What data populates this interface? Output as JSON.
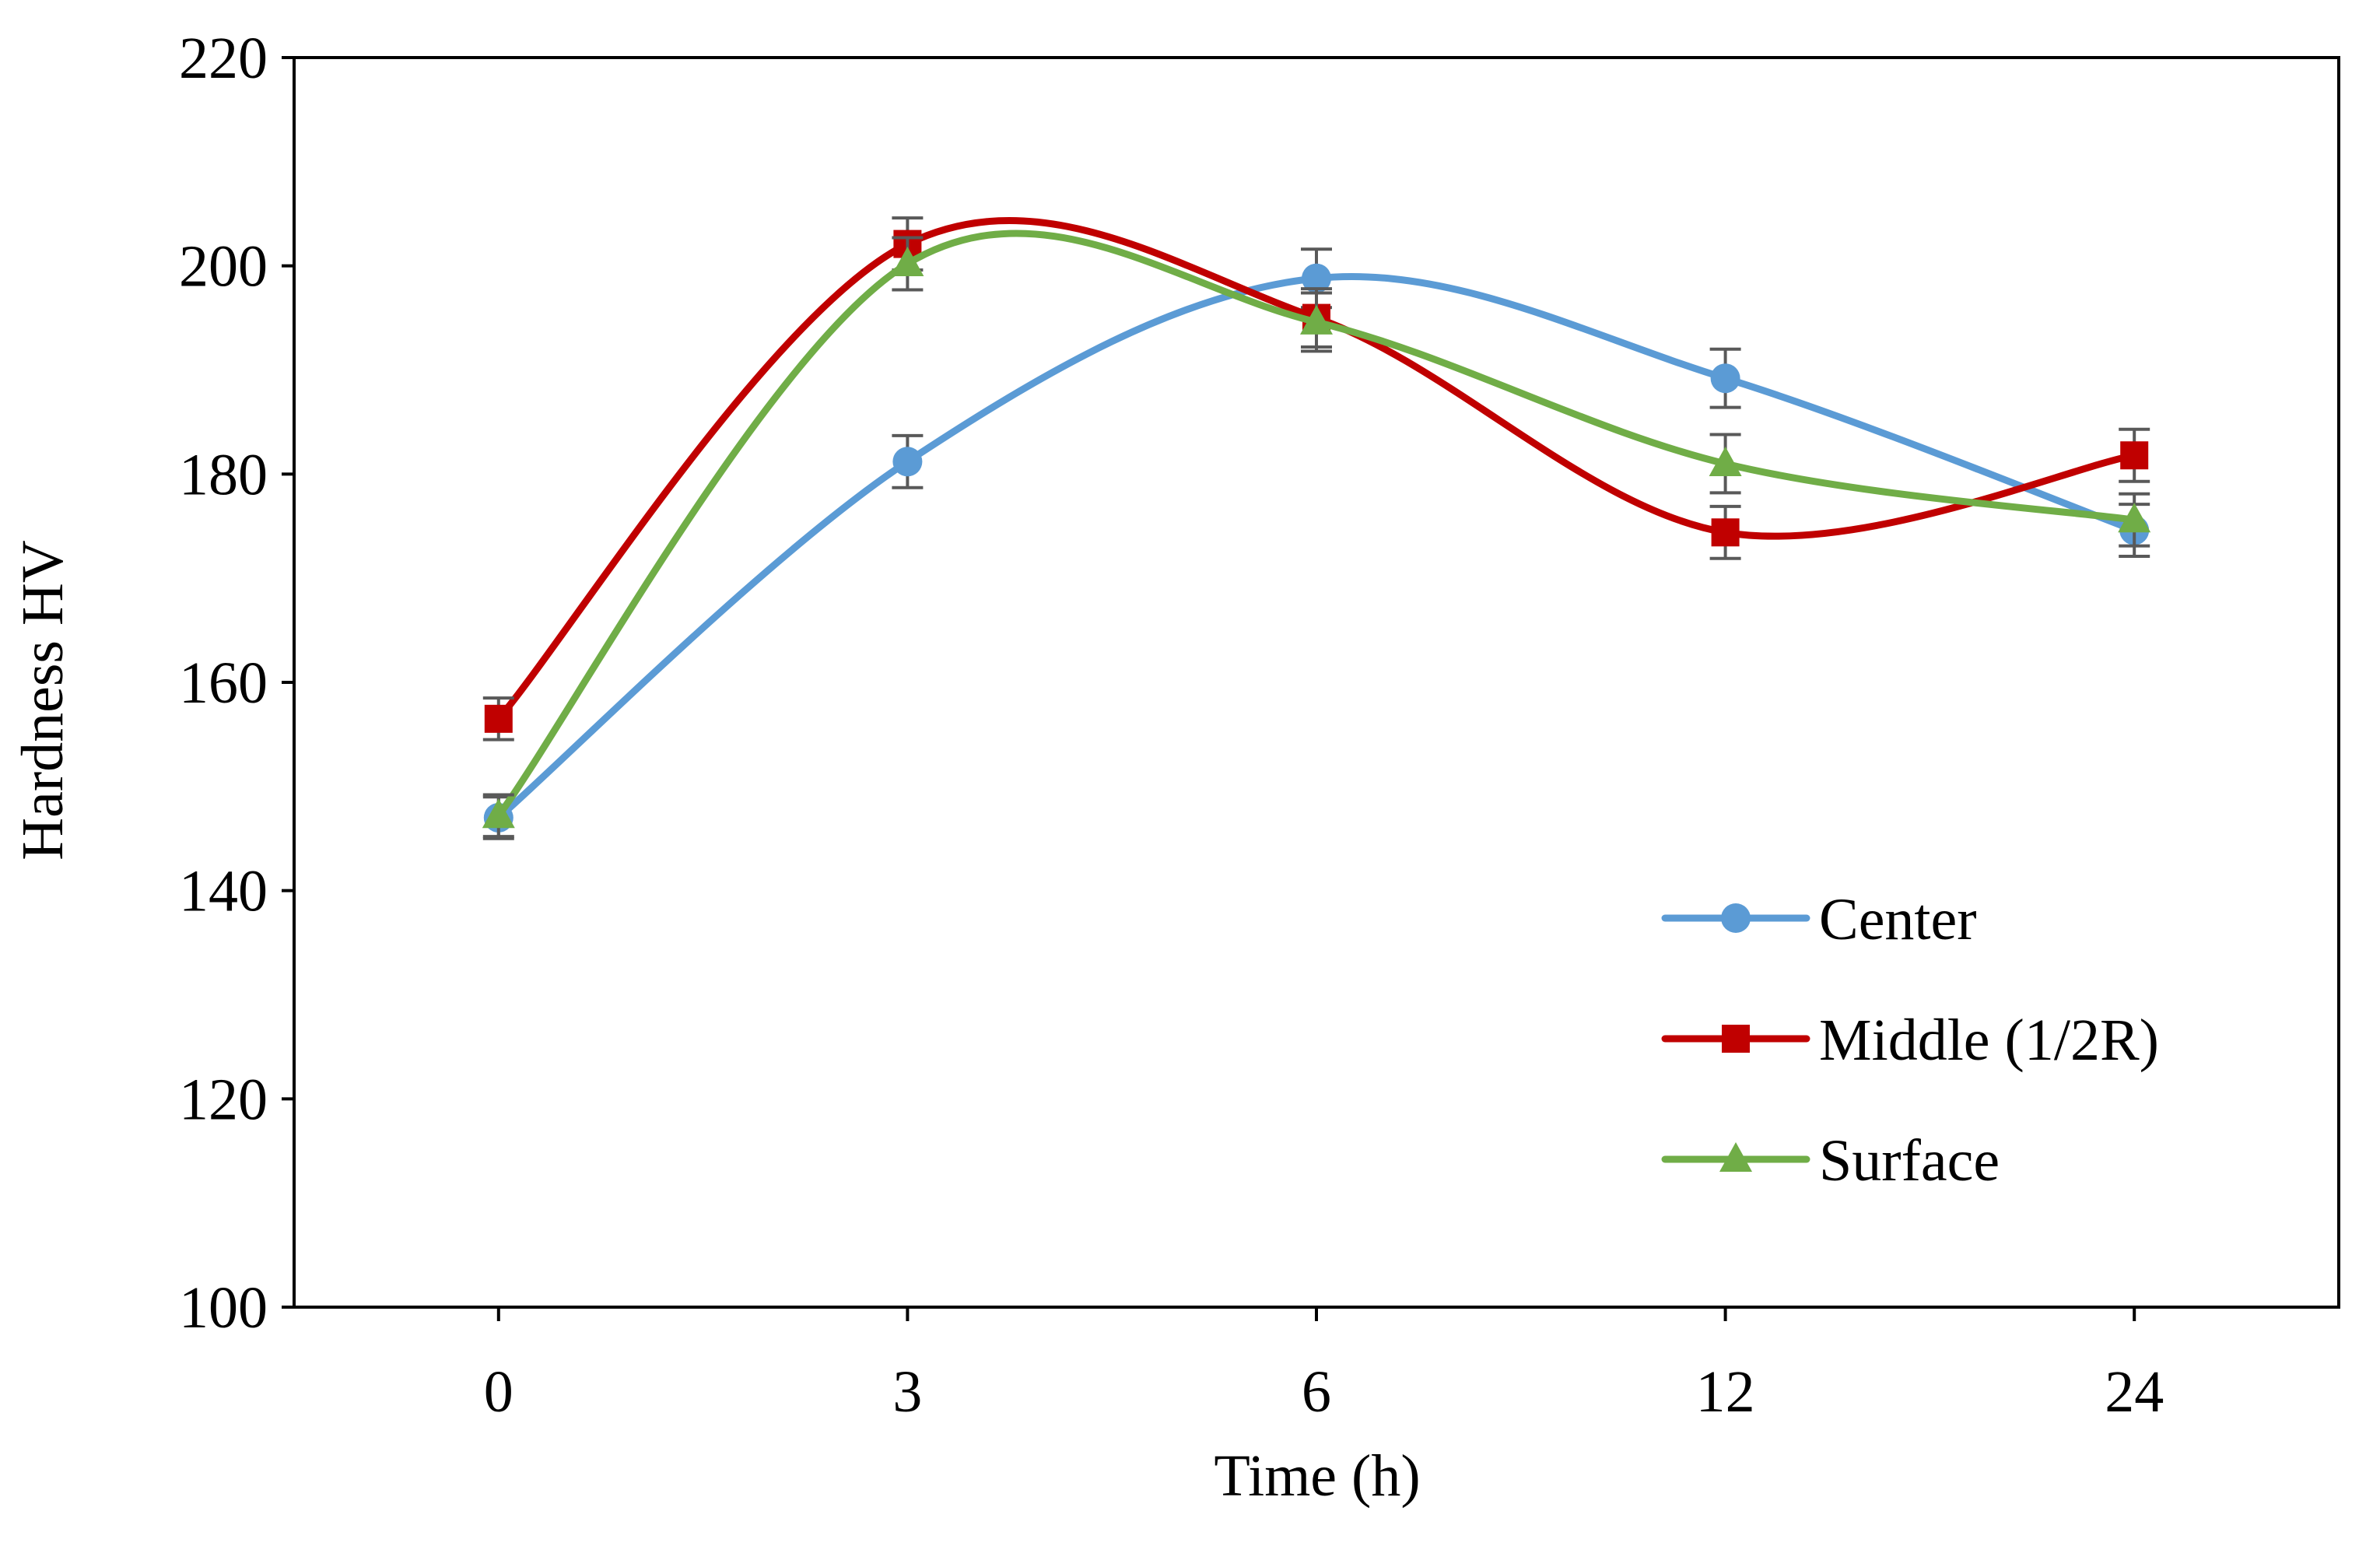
{
  "colors": {
    "center": "#5B9BD5",
    "middle": "#C00000",
    "surface": "#70AD47",
    "errorbar": "#595959",
    "axis": "#000000"
  },
  "chart_data": {
    "type": "line",
    "title": "",
    "xlabel": "Time (h)",
    "ylabel": "Hardness HV",
    "categories": [
      "0",
      "3",
      "6",
      "12",
      "24"
    ],
    "ylim": [
      100,
      220
    ],
    "yticks": [
      "100",
      "120",
      "140",
      "160",
      "180",
      "200",
      "220"
    ],
    "legend_position": "bottom-right",
    "grid": false,
    "smoothed": true,
    "series": [
      {
        "name": "Center",
        "marker": "circle",
        "color_key": "center",
        "values": [
          147,
          181.2,
          198.8,
          189.2,
          174.6
        ],
        "errors": [
          2.0,
          2.5,
          2.8,
          2.8,
          2.5
        ]
      },
      {
        "name": "Middle (1/2R)",
        "marker": "square",
        "color_key": "middle",
        "values": [
          156.5,
          202.1,
          195.0,
          174.4,
          181.8
        ],
        "errors": [
          2.0,
          2.5,
          2.8,
          2.5,
          2.5
        ]
      },
      {
        "name": "Surface",
        "marker": "triangle",
        "color_key": "surface",
        "values": [
          147.2,
          200.2,
          194.6,
          181.0,
          175.6
        ],
        "errors": [
          2.0,
          2.5,
          2.8,
          2.8,
          2.5
        ]
      }
    ]
  }
}
